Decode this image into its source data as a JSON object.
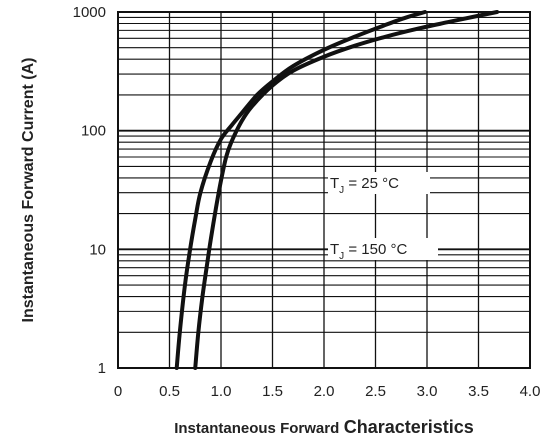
{
  "chart_data": {
    "type": "line",
    "xlabel_part1": "Instantaneous Forward",
    "xlabel_part2": "Characteristics",
    "ylabel": "Instantaneous Forward Current (A)",
    "xlim": [
      0,
      4.0
    ],
    "ylim": [
      1,
      1000
    ],
    "yscale": "log",
    "grid": true,
    "x_ticks": [
      "0",
      "0.5",
      "1.0",
      "1.5",
      "2.0",
      "2.5",
      "3.0",
      "3.5",
      "4.0"
    ],
    "y_ticks": [
      "1",
      "10",
      "100",
      "1000"
    ],
    "annotations": [
      {
        "main": "T",
        "sub": "J",
        "rest": " = 25 °C"
      },
      {
        "main": "T",
        "sub": "J",
        "rest": " = 150 °C"
      }
    ],
    "series": [
      {
        "x": [
          0.75,
          0.78,
          0.82,
          0.86,
          0.9,
          0.95,
          1.0,
          1.05,
          1.1,
          1.2,
          1.3,
          1.5,
          1.7,
          2.0,
          2.3,
          2.6,
          2.9,
          3.2,
          3.5,
          3.68
        ],
        "y": [
          1,
          2,
          4,
          7,
          12,
          22,
          38,
          60,
          80,
          120,
          160,
          240,
          320,
          420,
          520,
          620,
          720,
          820,
          930,
          1000
        ]
      },
      {
        "x": [
          0.57,
          0.6,
          0.65,
          0.7,
          0.75,
          0.8,
          0.9,
          1.0,
          1.1,
          1.2,
          1.35,
          1.5,
          1.7,
          2.0,
          2.3,
          2.6,
          2.8,
          2.98
        ],
        "y": [
          1,
          2,
          5,
          10,
          18,
          30,
          55,
          85,
          110,
          140,
          200,
          260,
          350,
          480,
          620,
          780,
          900,
          1000
        ]
      }
    ]
  }
}
